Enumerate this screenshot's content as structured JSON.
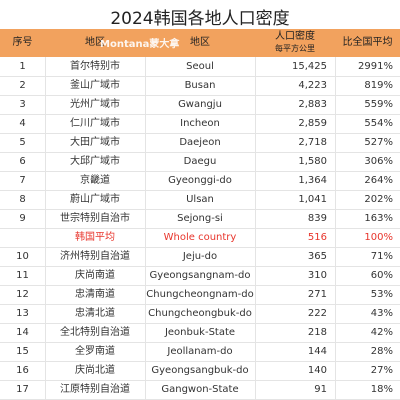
{
  "title": "2024韩国各地人口密度",
  "watermark": "Montana蒙大拿",
  "table": {
    "headers": [
      "序号",
      "地区",
      "地区",
      "人口密度",
      "比全国平均"
    ],
    "density_unit": "每平方公里",
    "rows": [
      [
        "1",
        "首尔特别市",
        "Seoul",
        "15,425",
        "2991%"
      ],
      [
        "2",
        "釜山广域市",
        "Busan",
        "4,223",
        "819%"
      ],
      [
        "3",
        "光州广域市",
        "Gwangju",
        "2,883",
        "559%"
      ],
      [
        "4",
        "仁川广域市",
        "Incheon",
        "2,859",
        "554%"
      ],
      [
        "5",
        "大田广域市",
        "Daejeon",
        "2,718",
        "527%"
      ],
      [
        "6",
        "大邱广域市",
        "Daegu",
        "1,580",
        "306%"
      ],
      [
        "7",
        "京畿道",
        "Gyeonggi-do",
        "1,364",
        "264%"
      ],
      [
        "8",
        "蔚山广域市",
        "Ulsan",
        "1,041",
        "202%"
      ],
      [
        "9",
        "世宗特别自治市",
        "Sejong-si",
        "839",
        "163%"
      ],
      [
        "韩国平均",
        "Whole country",
        "516",
        "100%"
      ],
      [
        "10",
        "济州特别自治道",
        "Jeju-do",
        "365",
        "71%"
      ],
      [
        "11",
        "庆尚南道",
        "Gyeongsangnam-do",
        "310",
        "60%"
      ],
      [
        "12",
        "忠清南道",
        "Chungcheongnam-do",
        "271",
        "53%"
      ],
      [
        "13",
        "忠清北道",
        "Chungcheongbuk-do",
        "222",
        "43%"
      ],
      [
        "14",
        "全北特别自治道",
        "Jeonbuk-State",
        "218",
        "42%"
      ],
      [
        "15",
        "全罗南道",
        "Jeollanam-do",
        "144",
        "28%"
      ],
      [
        "16",
        "庆尚北道",
        "Gyeongsangbuk-do",
        "140",
        "27%"
      ],
      [
        "17",
        "江原特别自治道",
        "Gangwon-State",
        "91",
        "18%"
      ]
    ]
  }
}
